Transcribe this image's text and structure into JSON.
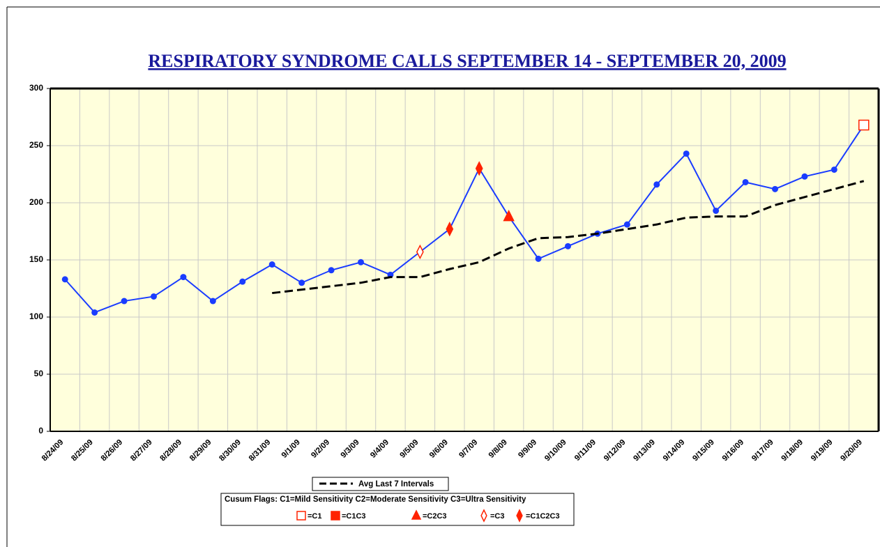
{
  "chart_data": {
    "type": "line",
    "title": "RESPIRATORY SYNDROME CALLS SEPTEMBER 14 - SEPTEMBER 20, 2009",
    "categories": [
      "8/24/09",
      "8/25/09",
      "8/26/09",
      "8/27/09",
      "8/28/09",
      "8/29/09",
      "8/30/09",
      "8/31/09",
      "9/1/09",
      "9/2/09",
      "9/3/09",
      "9/4/09",
      "9/5/09",
      "9/6/09",
      "9/7/09",
      "9/8/09",
      "9/9/09",
      "9/10/09",
      "9/11/09",
      "9/12/09",
      "9/13/09",
      "9/14/09",
      "9/15/09",
      "9/16/09",
      "9/17/09",
      "9/18/09",
      "9/19/09",
      "9/20/09"
    ],
    "series": [
      {
        "color": "#1a3cff",
        "marker": "circle",
        "values": [
          133,
          104,
          114,
          118,
          135,
          114,
          131,
          146,
          130,
          141,
          148,
          137,
          157,
          177,
          230,
          188,
          151,
          162,
          173,
          181,
          216,
          243,
          193,
          218,
          212,
          223,
          229,
          268
        ],
        "flags": [
          null,
          null,
          null,
          null,
          null,
          null,
          null,
          null,
          null,
          null,
          null,
          null,
          "open-diamond",
          "filled-diamond",
          "filled-diamond",
          "triangle",
          null,
          null,
          null,
          null,
          null,
          null,
          null,
          null,
          null,
          null,
          null,
          "open-square"
        ]
      },
      {
        "name": "Avg Last 7 Intervals",
        "color": "#000000",
        "dashed": true,
        "values": [
          null,
          null,
          null,
          null,
          null,
          null,
          null,
          121,
          124,
          127,
          130,
          135,
          135,
          142,
          148,
          160,
          169,
          170,
          173,
          177,
          181,
          187,
          188,
          188,
          198,
          205,
          212,
          219
        ]
      }
    ],
    "flag_legend": {
      "caption": "Cusum Flags:  C1=Mild Sensitivity  C2=Moderate Sensitivity  C3=Ultra Sensitivity",
      "color": "#ff2200",
      "items": [
        {
          "marker": "open-square",
          "label": "=C1"
        },
        {
          "marker": "filled-square",
          "label": "=C1C3"
        },
        {
          "marker": "triangle",
          "label": "=C2C3"
        },
        {
          "marker": "open-diamond",
          "label": "=C3"
        },
        {
          "marker": "filled-diamond",
          "label": "=C1C2C3"
        }
      ]
    },
    "ylim": [
      0,
      300
    ],
    "yticks": [
      0,
      50,
      100,
      150,
      200,
      250,
      300
    ],
    "grid": true
  }
}
